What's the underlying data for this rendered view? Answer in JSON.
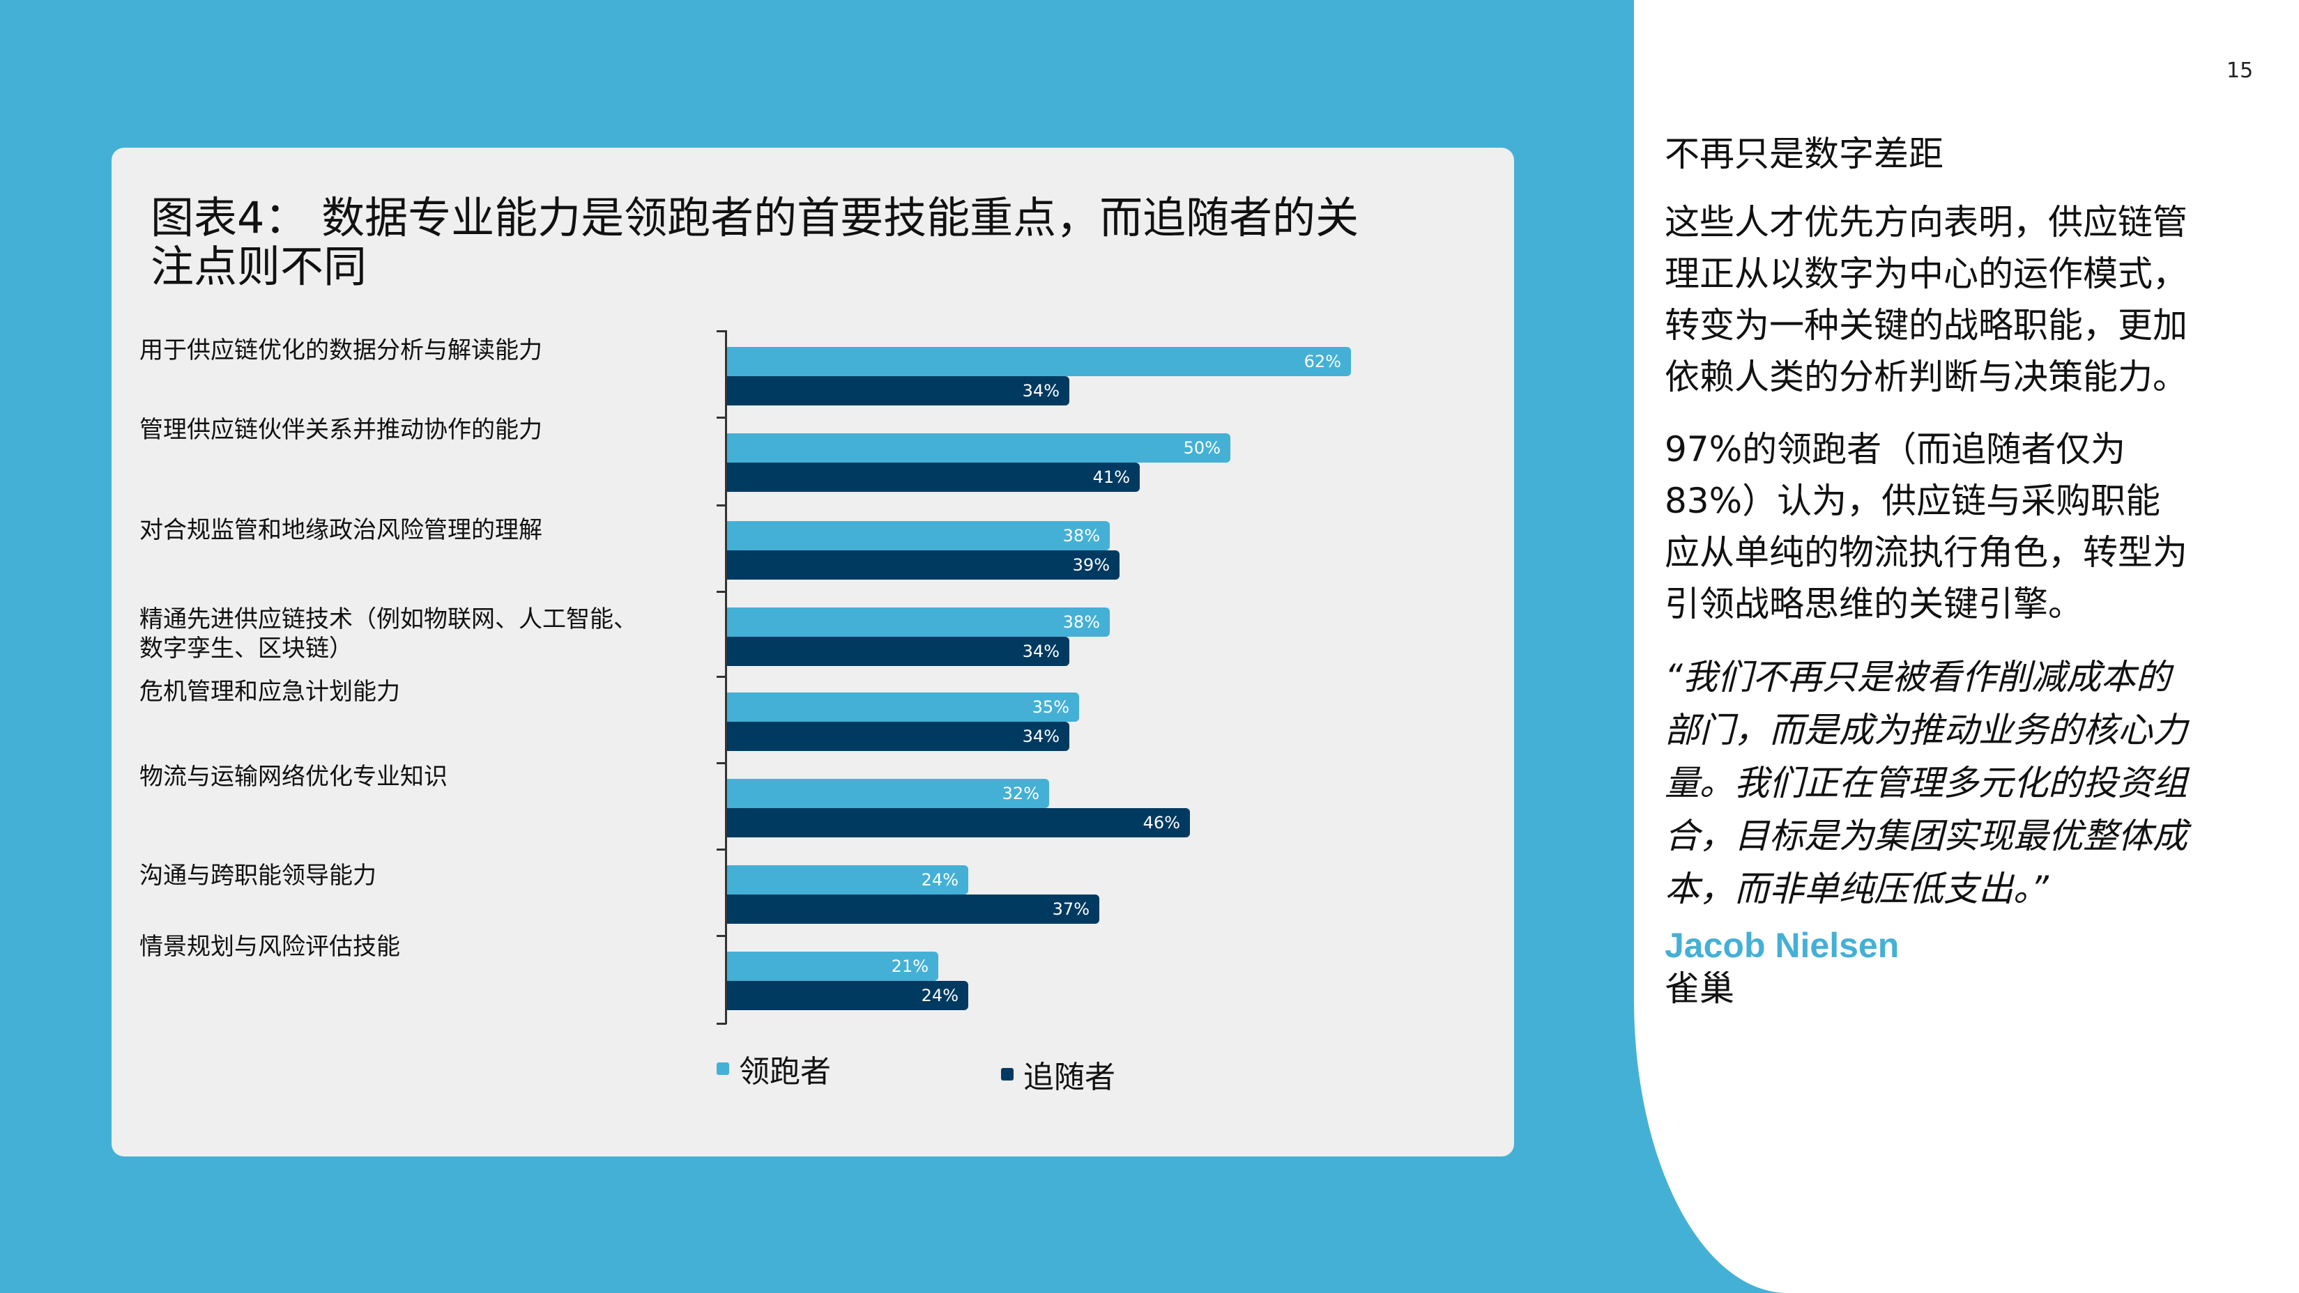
{
  "page": {
    "number": "15"
  },
  "chart_card": {
    "title": "图表4：  数据专业能力是领跑者的首要技能重点，而追随者的关注点则不同",
    "legend": [
      {
        "label": "领跑者",
        "color": "#44b0d6"
      },
      {
        "label": "追随者",
        "color": "#003a60"
      }
    ],
    "categories": [
      {
        "label": "用于供应链优化的数据分析与解读能力",
        "leader": "62%",
        "follower": "34%"
      },
      {
        "label": "管理供应链伙伴关系并推动协作的能力",
        "leader": "50%",
        "follower": "41%"
      },
      {
        "label": "对合规监管和地缘政治风险管理的理解",
        "leader": "38%",
        "follower": "39%"
      },
      {
        "label": "精通先进供应链技术（例如物联网、人工智能、数字孪生、区块链）",
        "leader": "38%",
        "follower": "34%"
      },
      {
        "label": "危机管理和应急计划能力",
        "leader": "35%",
        "follower": "34%"
      },
      {
        "label": "物流与运输网络优化专业知识",
        "leader": "32%",
        "follower": "46%"
      },
      {
        "label": "沟通与跨职能领导能力",
        "leader": "24%",
        "follower": "37%"
      },
      {
        "label": "情景规划与风险评估技能",
        "leader": "21%",
        "follower": "24%"
      }
    ]
  },
  "side": {
    "heading": "不再只是数字差距",
    "paragraph1": "这些人才优先方向表明，供应链管理正从以数字为中心的运作模式，转变为一种关键的战略职能，更加依赖人类的分析判断与决策能力。",
    "paragraph2": "97%的领跑者（而追随者仅为83%）认为，供应链与采购职能应从单纯的物流执行角色，转型为引领战略思维的关键引擎。",
    "quote": "“我们不再只是被看作削减成本的部门，而是成为推动业务的核心力量。我们正在管理多元化的投资组合，目标是为集团实现最优整体成本，而非单纯压低支出。”",
    "author_name": "Jacob Nielsen",
    "author_org": "雀巢"
  },
  "colors": {
    "background": "#44b0d6",
    "leader": "#44b0d6",
    "follower": "#003a60",
    "card": "#efefef"
  },
  "chart_data": {
    "type": "bar",
    "orientation": "horizontal",
    "title": "图表4：数据专业能力是领跑者的首要技能重点，而追随者的关注点则不同",
    "categories": [
      "用于供应链优化的数据分析与解读能力",
      "管理供应链伙伴关系并推动协作的能力",
      "对合规监管和地缘政治风险管理的理解",
      "精通先进供应链技术（例如物联网、人工智能、数字孪生、区块链）",
      "危机管理和应急计划能力",
      "物流与运输网络优化专业知识",
      "沟通与跨职能领导能力",
      "情景规划与风险评估技能"
    ],
    "series": [
      {
        "name": "领跑者",
        "color": "#44b0d6",
        "values": [
          62,
          50,
          38,
          38,
          35,
          32,
          24,
          21
        ]
      },
      {
        "name": "追随者",
        "color": "#003a60",
        "values": [
          34,
          41,
          39,
          34,
          34,
          46,
          37,
          24
        ]
      }
    ],
    "unit": "%",
    "xlabel": "",
    "ylabel": "",
    "xlim": [
      0,
      65
    ],
    "grid": false,
    "legend_position": "bottom"
  }
}
